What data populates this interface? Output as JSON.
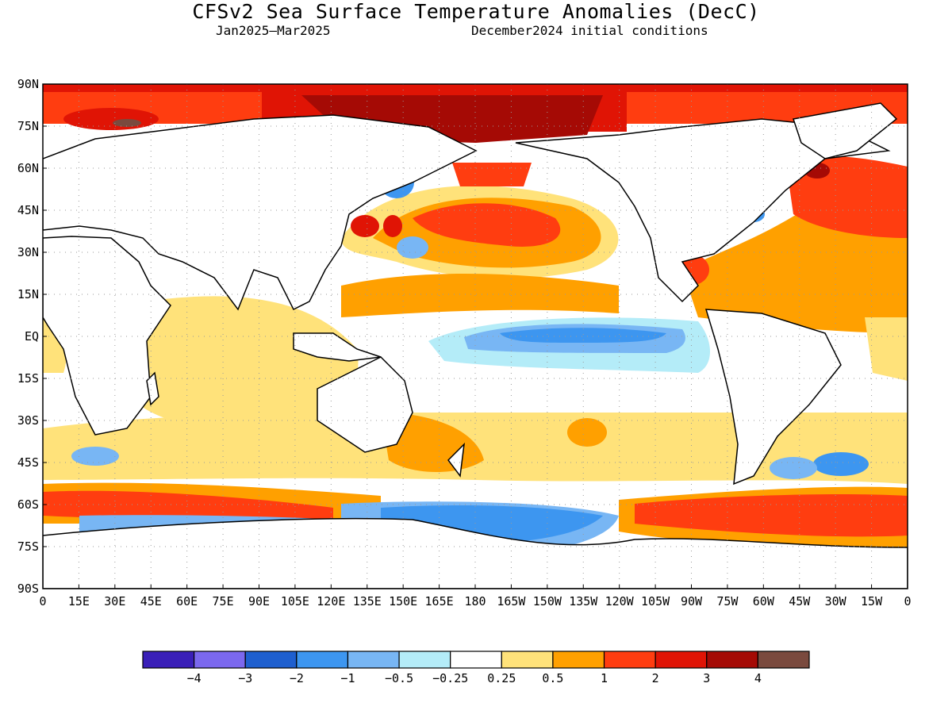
{
  "title": "CFSv2 Sea Surface Temperature Anomalies (DecC)",
  "subtitle_left": "Jan2025–Mar2025",
  "subtitle_right": "December2024 initial conditions",
  "lat_labels": [
    "90N",
    "75N",
    "60N",
    "45N",
    "30N",
    "15N",
    "EQ",
    "15S",
    "30S",
    "45S",
    "60S",
    "75S",
    "90S"
  ],
  "lon_labels": [
    "0",
    "15E",
    "30E",
    "45E",
    "60E",
    "75E",
    "90E",
    "105E",
    "120E",
    "135E",
    "150E",
    "165E",
    "180",
    "165W",
    "150W",
    "135W",
    "120W",
    "105W",
    "90W",
    "75W",
    "60W",
    "45W",
    "30W",
    "15W",
    "0"
  ],
  "colorbar": {
    "colors": [
      "#3a1fb8",
      "#7b68ee",
      "#1e5fcf",
      "#3d96f0",
      "#78b6f4",
      "#b4ecf8",
      "#ffffff",
      "#ffe27a",
      "#ffa000",
      "#ff3d10",
      "#e01405",
      "#a50a05",
      "#7a4a3e"
    ],
    "labels": [
      "−4",
      "−3",
      "−2",
      "−1",
      "−0.5",
      "−0.25",
      "0.25",
      "0.5",
      "1",
      "2",
      "3",
      "4"
    ]
  },
  "colors": {
    "land": "#ffffff",
    "coast": "#000000",
    "grid": "#9a9a9a"
  }
}
